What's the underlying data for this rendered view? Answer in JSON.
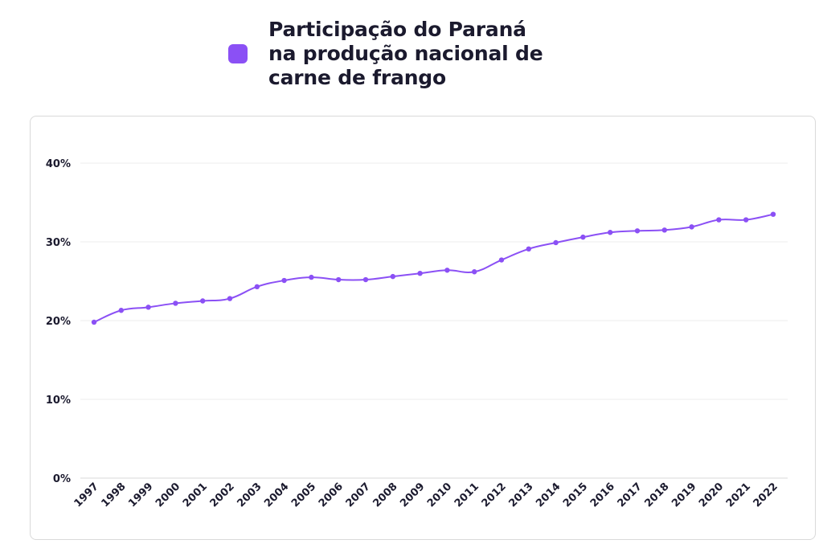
{
  "legend": {
    "label": "Participação do Paraná\nna produção nacional de\ncarne de frango",
    "color": "#8b50f5"
  },
  "chart_data": {
    "type": "line",
    "title": "",
    "xlabel": "",
    "ylabel": "",
    "x": [
      "1997",
      "1998",
      "1999",
      "2000",
      "2001",
      "2002",
      "2003",
      "2004",
      "2005",
      "2006",
      "2007",
      "2008",
      "2009",
      "2010",
      "2011",
      "2012",
      "2013",
      "2014",
      "2015",
      "2016",
      "2017",
      "2018",
      "2019",
      "2020",
      "2021",
      "2022"
    ],
    "series": [
      {
        "name": "Participação do Paraná na produção nacional de carne de frango",
        "color": "#8b50f5",
        "values": [
          19.8,
          21.3,
          21.7,
          22.2,
          22.5,
          22.8,
          24.3,
          25.1,
          25.5,
          25.2,
          25.2,
          25.6,
          26.0,
          26.4,
          26.2,
          27.7,
          29.1,
          29.9,
          30.6,
          31.2,
          31.4,
          31.5,
          31.9,
          32.8,
          32.8,
          33.5
        ]
      }
    ],
    "ylim": [
      0,
      40
    ],
    "y_ticks": [
      "0%",
      "10%",
      "20%",
      "30%",
      "40%"
    ],
    "y_tick_values": [
      0,
      10,
      20,
      30,
      40
    ],
    "grid": true,
    "legend_position": "top"
  }
}
